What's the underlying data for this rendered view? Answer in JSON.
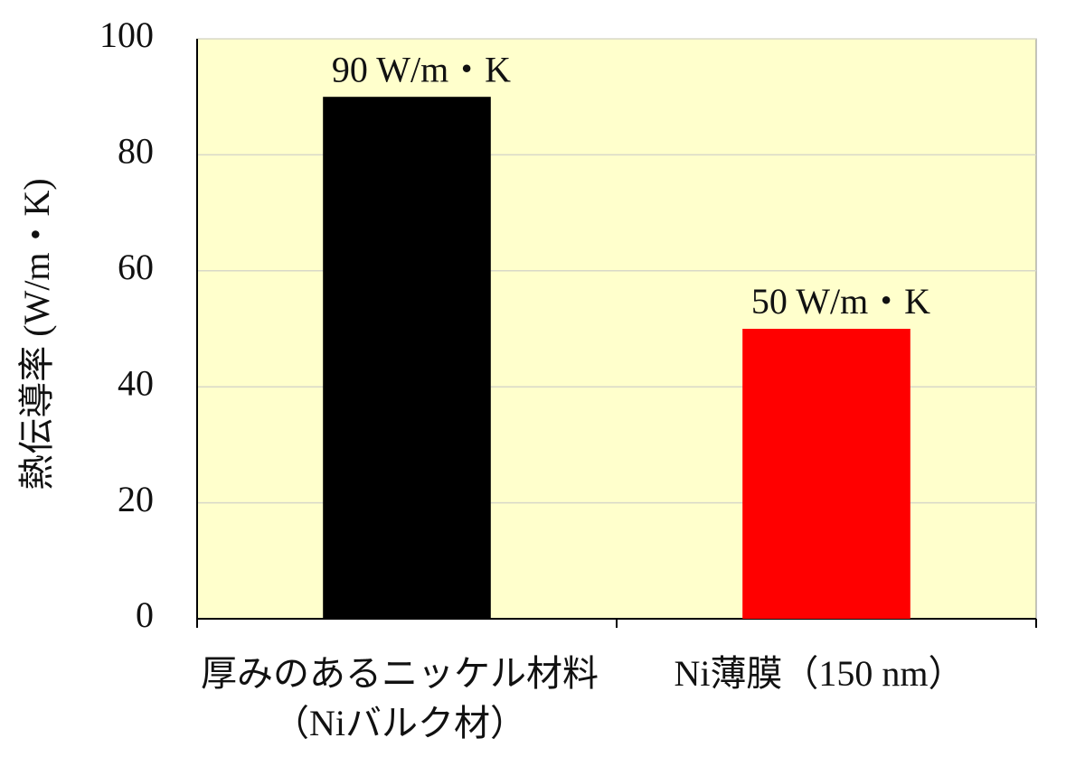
{
  "chart_data": {
    "type": "bar",
    "y_label": "熱伝導率 (W/m・K)",
    "categories": [
      [
        "厚みのあるニッケル材料",
        "（Niバルク材）"
      ],
      [
        "Ni薄膜（150 nm）"
      ]
    ],
    "values": [
      90,
      50
    ],
    "value_labels": [
      "90 W/m・K",
      "50 W/m・K"
    ],
    "colors": [
      "#000000",
      "#ff0000"
    ],
    "ylim": [
      0,
      100
    ],
    "yticks": [
      0,
      20,
      40,
      60,
      80,
      100
    ],
    "grid": true,
    "plot_background": "#ffffcc"
  }
}
